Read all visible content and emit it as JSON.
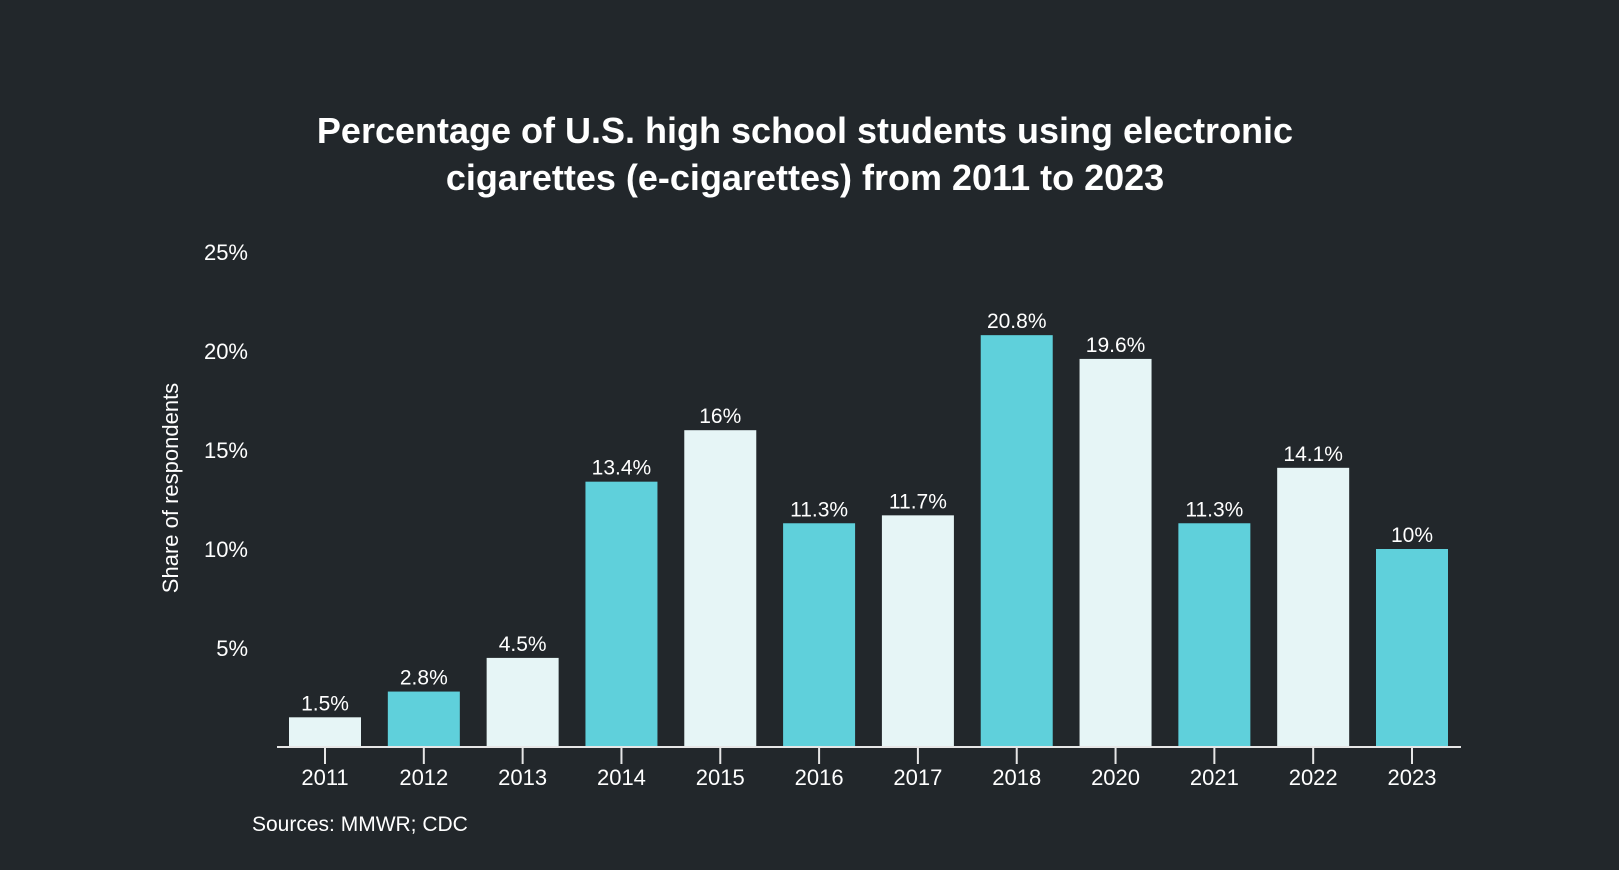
{
  "chart_data": {
    "type": "bar",
    "title_lines": [
      "Percentage of U.S. high school students using electronic",
      "cigarettes (e-cigarettes) from 2011 to 2023"
    ],
    "xlabel": "",
    "ylabel": "Share of respondents",
    "categories": [
      "2011",
      "2012",
      "2013",
      "2014",
      "2015",
      "2016",
      "2017",
      "2018",
      "2020",
      "2021",
      "2022",
      "2023"
    ],
    "values": [
      1.5,
      2.8,
      4.5,
      13.4,
      16,
      11.3,
      11.7,
      20.8,
      19.6,
      11.3,
      14.1,
      10
    ],
    "data_labels": [
      "1.5%",
      "2.8%",
      "4.5%",
      "13.4%",
      "16%",
      "11.3%",
      "11.7%",
      "20.8%",
      "19.6%",
      "11.3%",
      "14.1%",
      "10%"
    ],
    "ylim": [
      0,
      25
    ],
    "yticks": [
      5,
      10,
      15,
      20,
      25
    ],
    "ytick_labels": [
      "5%",
      "10%",
      "15%",
      "20%",
      "25%"
    ],
    "grid": false,
    "bar_colors": [
      "#e6f5f6",
      "#5fd0db",
      "#e6f5f6",
      "#5fd0db",
      "#e6f5f6",
      "#5fd0db",
      "#e6f5f6",
      "#5fd0db",
      "#e6f5f6",
      "#5fd0db",
      "#e6f5f6",
      "#5fd0db"
    ],
    "background": "#22272b",
    "source": "Sources: MMWR; CDC"
  }
}
